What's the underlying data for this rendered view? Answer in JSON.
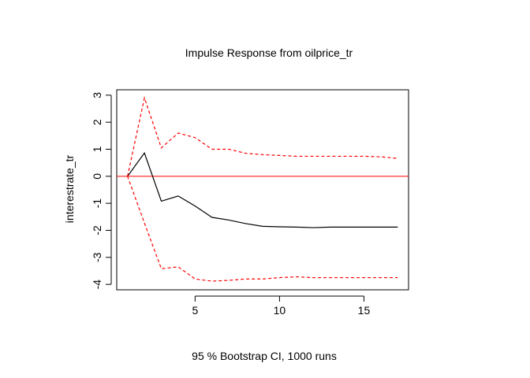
{
  "chart_data": {
    "type": "line",
    "title": "Impulse Response from oilprice_tr",
    "ylabel": "interestrate_tr",
    "xlabel": "95 % Bootstrap CI,  1000 runs",
    "x": [
      1,
      2,
      3,
      4,
      5,
      6,
      7,
      8,
      9,
      10,
      11,
      12,
      13,
      14,
      15,
      16,
      17
    ],
    "xlim": [
      0.36,
      17.64
    ],
    "ylim": [
      -4.2,
      3.2
    ],
    "x_ticks": [
      5,
      10,
      15
    ],
    "y_ticks": [
      -4,
      -3,
      -2,
      -1,
      0,
      1,
      2,
      3
    ],
    "hline": 0,
    "grid": false,
    "series": [
      {
        "style": "solid",
        "color": "#000000",
        "values": [
          0.0,
          0.86,
          -0.92,
          -0.73,
          -1.1,
          -1.52,
          -1.62,
          -1.75,
          -1.85,
          -1.87,
          -1.88,
          -1.9,
          -1.88,
          -1.88,
          -1.88,
          -1.88,
          -1.88
        ]
      },
      {
        "style": "dashed",
        "color": "#ff0000",
        "values": [
          0.0,
          2.9,
          1.05,
          1.6,
          1.43,
          1.0,
          1.0,
          0.85,
          0.8,
          0.77,
          0.74,
          0.74,
          0.74,
          0.74,
          0.74,
          0.72,
          0.66
        ]
      },
      {
        "style": "dashed",
        "color": "#ff0000",
        "values": [
          0.0,
          -1.73,
          -3.42,
          -3.35,
          -3.8,
          -3.88,
          -3.85,
          -3.8,
          -3.8,
          -3.75,
          -3.72,
          -3.75,
          -3.75,
          -3.75,
          -3.75,
          -3.75,
          -3.75
        ]
      }
    ],
    "hline_color": "#ff0000"
  }
}
